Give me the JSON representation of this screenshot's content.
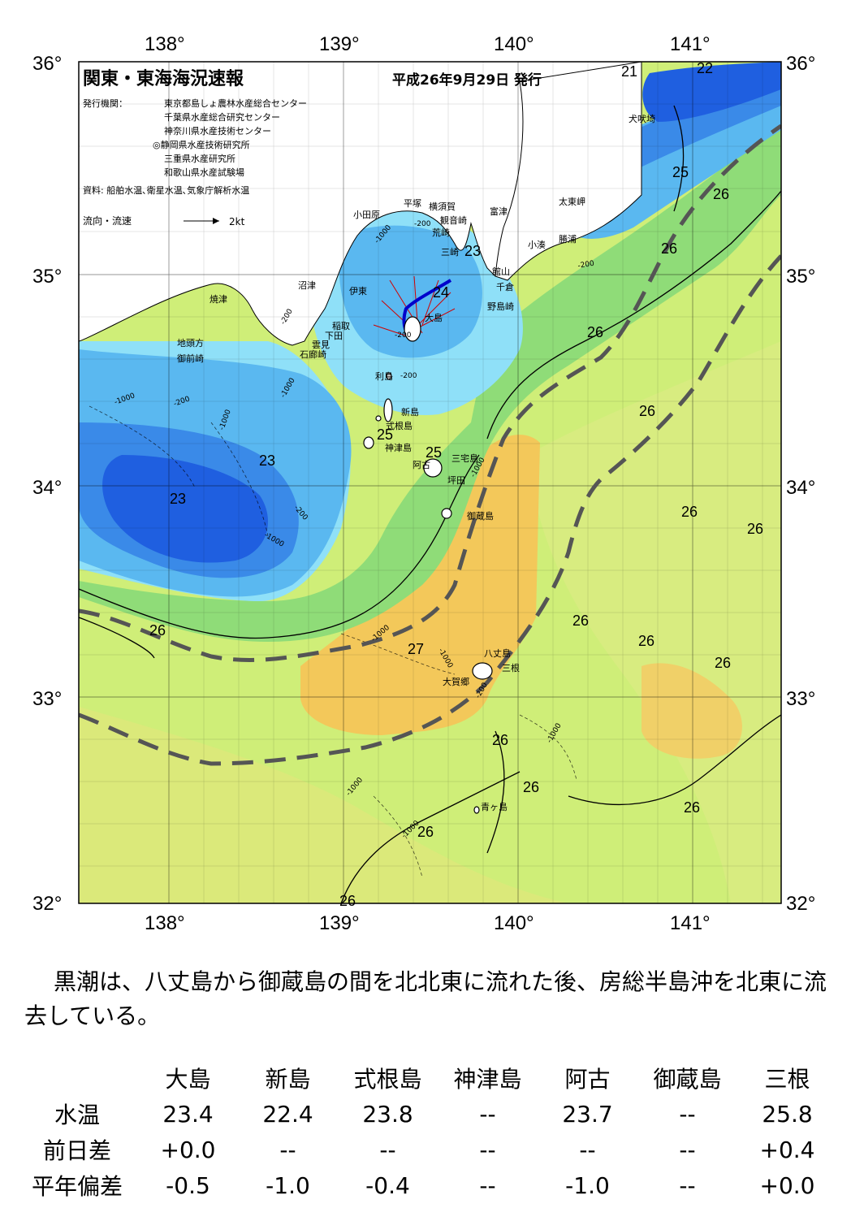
{
  "header": {
    "title": "関東・東海海況速報",
    "date": "平成26年9月29日 発行",
    "issuer_label": "発行機関：",
    "issuers": [
      "東京都島しょ農林水産総合センター",
      "千葉県水産総合研究センター",
      "神奈川県水産技術センター",
      "◎静岡県水産技術研究所",
      "三重県水産研究所",
      "和歌山県水産試験場"
    ],
    "source": "資料: 船舶水温､衛星水温､気象庁解析水温",
    "current_legend": "流向・流速",
    "current_scale": "2kt"
  },
  "axes": {
    "lon_top": [
      "138°",
      "139°",
      "140°",
      "141°"
    ],
    "lon_bottom": [
      "138°",
      "139°",
      "140°",
      "141°"
    ],
    "lat_left": [
      "36°",
      "35°",
      "34°",
      "33°",
      "32°"
    ],
    "lat_right": [
      "36°",
      "35°",
      "34°",
      "33°",
      "32°"
    ]
  },
  "places": [
    {
      "name": "犬吠埼"
    },
    {
      "name": "太東岬"
    },
    {
      "name": "勝浦"
    },
    {
      "name": "小湊"
    },
    {
      "name": "富津"
    },
    {
      "name": "観音崎"
    },
    {
      "name": "横須賀"
    },
    {
      "name": "平塚"
    },
    {
      "name": "小田原"
    },
    {
      "name": "荒崎"
    },
    {
      "name": "三崎"
    },
    {
      "name": "館山"
    },
    {
      "name": "千倉"
    },
    {
      "name": "野島崎"
    },
    {
      "name": "沼津"
    },
    {
      "name": "伊東"
    },
    {
      "name": "大島"
    },
    {
      "name": "焼津"
    },
    {
      "name": "稲取"
    },
    {
      "name": "下田"
    },
    {
      "name": "雲見"
    },
    {
      "name": "石廊崎"
    },
    {
      "name": "地頭方"
    },
    {
      "name": "御前崎"
    },
    {
      "name": "利島"
    },
    {
      "name": "新島"
    },
    {
      "name": "式根島"
    },
    {
      "name": "神津島"
    },
    {
      "name": "三宅島"
    },
    {
      "name": "阿古"
    },
    {
      "name": "坪田"
    },
    {
      "name": "御蔵島"
    },
    {
      "name": "八丈島"
    },
    {
      "name": "三根"
    },
    {
      "name": "大賀郷"
    },
    {
      "name": "青ヶ島"
    }
  ],
  "temp_labels": [
    "21",
    "22",
    "25",
    "26",
    "26",
    "23",
    "24",
    "26",
    "26",
    "23",
    "23",
    "25",
    "25",
    "26",
    "26",
    "26",
    "26",
    "26",
    "27",
    "26",
    "26",
    "26",
    "26",
    "26",
    "26"
  ],
  "depth_labels": [
    "-200",
    "-1000",
    "-200",
    "-200",
    "-1000",
    "-200",
    "-1000",
    "-200",
    "-1000",
    "-1000",
    "-200",
    "-1000",
    "-1000",
    "-1000",
    "-1000",
    "-200",
    "-1000",
    "-200",
    "-1000"
  ],
  "colors": {
    "deep_blue": "#1f5fe0",
    "blue": "#3a8ae8",
    "light_blue": "#5ab8f0",
    "cyan": "#8fe0f8",
    "green": "#8fdc78",
    "yellow_green": "#cfee78",
    "light_yellow": "#e4ec80",
    "orange": "#f3c85a",
    "kuroshio_line": "#555555"
  },
  "summary": "黒潮は、八丈島から御蔵島の間を北北東に流れた後、房総半島沖を北東に流去している。",
  "table": {
    "columns": [
      "大島",
      "新島",
      "式根島",
      "神津島",
      "阿古",
      "御蔵島",
      "三根"
    ],
    "rows": [
      {
        "label": "水温",
        "values": [
          "23.4",
          "22.4",
          "23.8",
          "--",
          "23.7",
          "--",
          "25.8"
        ]
      },
      {
        "label": "前日差",
        "values": [
          "+0.0",
          "--",
          "--",
          "--",
          "--",
          "--",
          "+0.4"
        ]
      },
      {
        "label": "平年偏差",
        "values": [
          "-0.5",
          "-1.0",
          "-0.4",
          "--",
          "-1.0",
          "--",
          "+0.0"
        ]
      }
    ]
  }
}
